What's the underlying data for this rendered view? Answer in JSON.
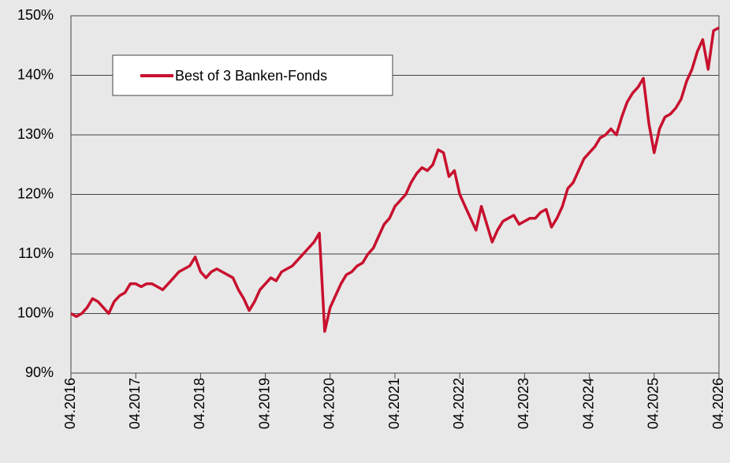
{
  "chart_data": {
    "type": "line",
    "x": [
      "04.2016",
      "05.2016",
      "06.2016",
      "07.2016",
      "08.2016",
      "09.2016",
      "10.2016",
      "11.2016",
      "12.2016",
      "01.2017",
      "02.2017",
      "03.2017",
      "04.2017",
      "05.2017",
      "06.2017",
      "07.2017",
      "08.2017",
      "09.2017",
      "10.2017",
      "11.2017",
      "12.2017",
      "01.2018",
      "02.2018",
      "03.2018",
      "04.2018",
      "05.2018",
      "06.2018",
      "07.2018",
      "08.2018",
      "09.2018",
      "10.2018",
      "11.2018",
      "12.2018",
      "01.2019",
      "02.2019",
      "03.2019",
      "04.2019",
      "05.2019",
      "06.2019",
      "07.2019",
      "08.2019",
      "09.2019",
      "10.2019",
      "11.2019",
      "12.2019",
      "01.2020",
      "02.2020",
      "03.2020",
      "04.2020",
      "05.2020",
      "06.2020",
      "07.2020",
      "08.2020",
      "09.2020",
      "10.2020",
      "11.2020",
      "12.2020",
      "01.2021",
      "02.2021",
      "03.2021",
      "04.2021",
      "05.2021",
      "06.2021",
      "07.2021",
      "08.2021",
      "09.2021",
      "10.2021",
      "11.2021",
      "12.2021",
      "01.2022",
      "02.2022",
      "03.2022",
      "04.2022",
      "05.2022",
      "06.2022",
      "07.2022",
      "08.2022",
      "09.2022",
      "10.2022",
      "11.2022",
      "12.2022",
      "01.2023",
      "02.2023",
      "03.2023",
      "04.2023",
      "05.2023",
      "06.2023",
      "07.2023",
      "08.2023",
      "09.2023",
      "10.2023",
      "11.2023",
      "12.2023",
      "01.2024",
      "02.2024",
      "03.2024",
      "04.2024",
      "05.2024",
      "06.2024",
      "07.2024",
      "08.2024",
      "09.2024",
      "10.2024",
      "11.2024",
      "12.2024",
      "01.2025",
      "02.2025",
      "03.2025",
      "04.2025",
      "05.2025",
      "06.2025",
      "07.2025",
      "08.2025",
      "09.2025",
      "10.2025",
      "11.2025",
      "12.2025",
      "01.2026",
      "02.2026",
      "03.2026",
      "04.2026"
    ],
    "series": [
      {
        "name": "Best of 3 Banken-Fonds",
        "color": "#c8102e",
        "values": [
          100,
          99.5,
          100,
          101,
          102.5,
          102,
          101,
          100,
          102,
          103,
          103.5,
          105,
          105,
          104.5,
          105,
          105,
          104.5,
          104,
          105,
          106,
          107,
          107.5,
          108,
          109.5,
          107,
          106,
          107,
          107.5,
          107,
          106.5,
          106,
          104,
          102.5,
          100.5,
          102,
          104,
          105,
          106,
          105.5,
          107,
          107.5,
          108,
          109,
          110,
          111,
          112,
          113.5,
          97,
          101,
          103,
          105,
          106.5,
          107,
          108,
          108.5,
          110,
          111,
          113,
          115,
          116,
          118,
          119,
          120,
          122,
          123.5,
          124.5,
          124,
          125,
          127.5,
          127,
          123,
          124,
          120,
          118,
          116,
          114,
          118,
          115,
          112,
          114,
          115.5,
          116,
          116.5,
          115,
          115.5,
          116,
          116,
          117,
          117.5,
          114.5,
          116,
          118,
          121,
          122,
          124,
          126,
          127,
          128,
          129.5,
          130,
          131,
          130,
          133,
          135.5,
          137,
          138,
          139.5,
          132,
          127,
          131,
          133,
          133.5,
          134.5,
          136,
          139,
          141,
          144,
          146,
          141,
          147.5,
          148
        ]
      }
    ],
    "xticks": [
      "04.2016",
      "04.2017",
      "04.2018",
      "04.2019",
      "04.2020",
      "04.2021",
      "04.2022",
      "04.2023",
      "04.2024",
      "04.2025",
      "04.2026"
    ],
    "ylim": [
      90,
      150
    ],
    "yticks": [
      {
        "value": 90,
        "label": "90%"
      },
      {
        "value": 100,
        "label": "100%"
      },
      {
        "value": 110,
        "label": "110%"
      },
      {
        "value": 120,
        "label": "120%"
      },
      {
        "value": 130,
        "label": "130%"
      },
      {
        "value": 140,
        "label": "140%"
      },
      {
        "value": 150,
        "label": "150%"
      }
    ],
    "grid": true
  }
}
